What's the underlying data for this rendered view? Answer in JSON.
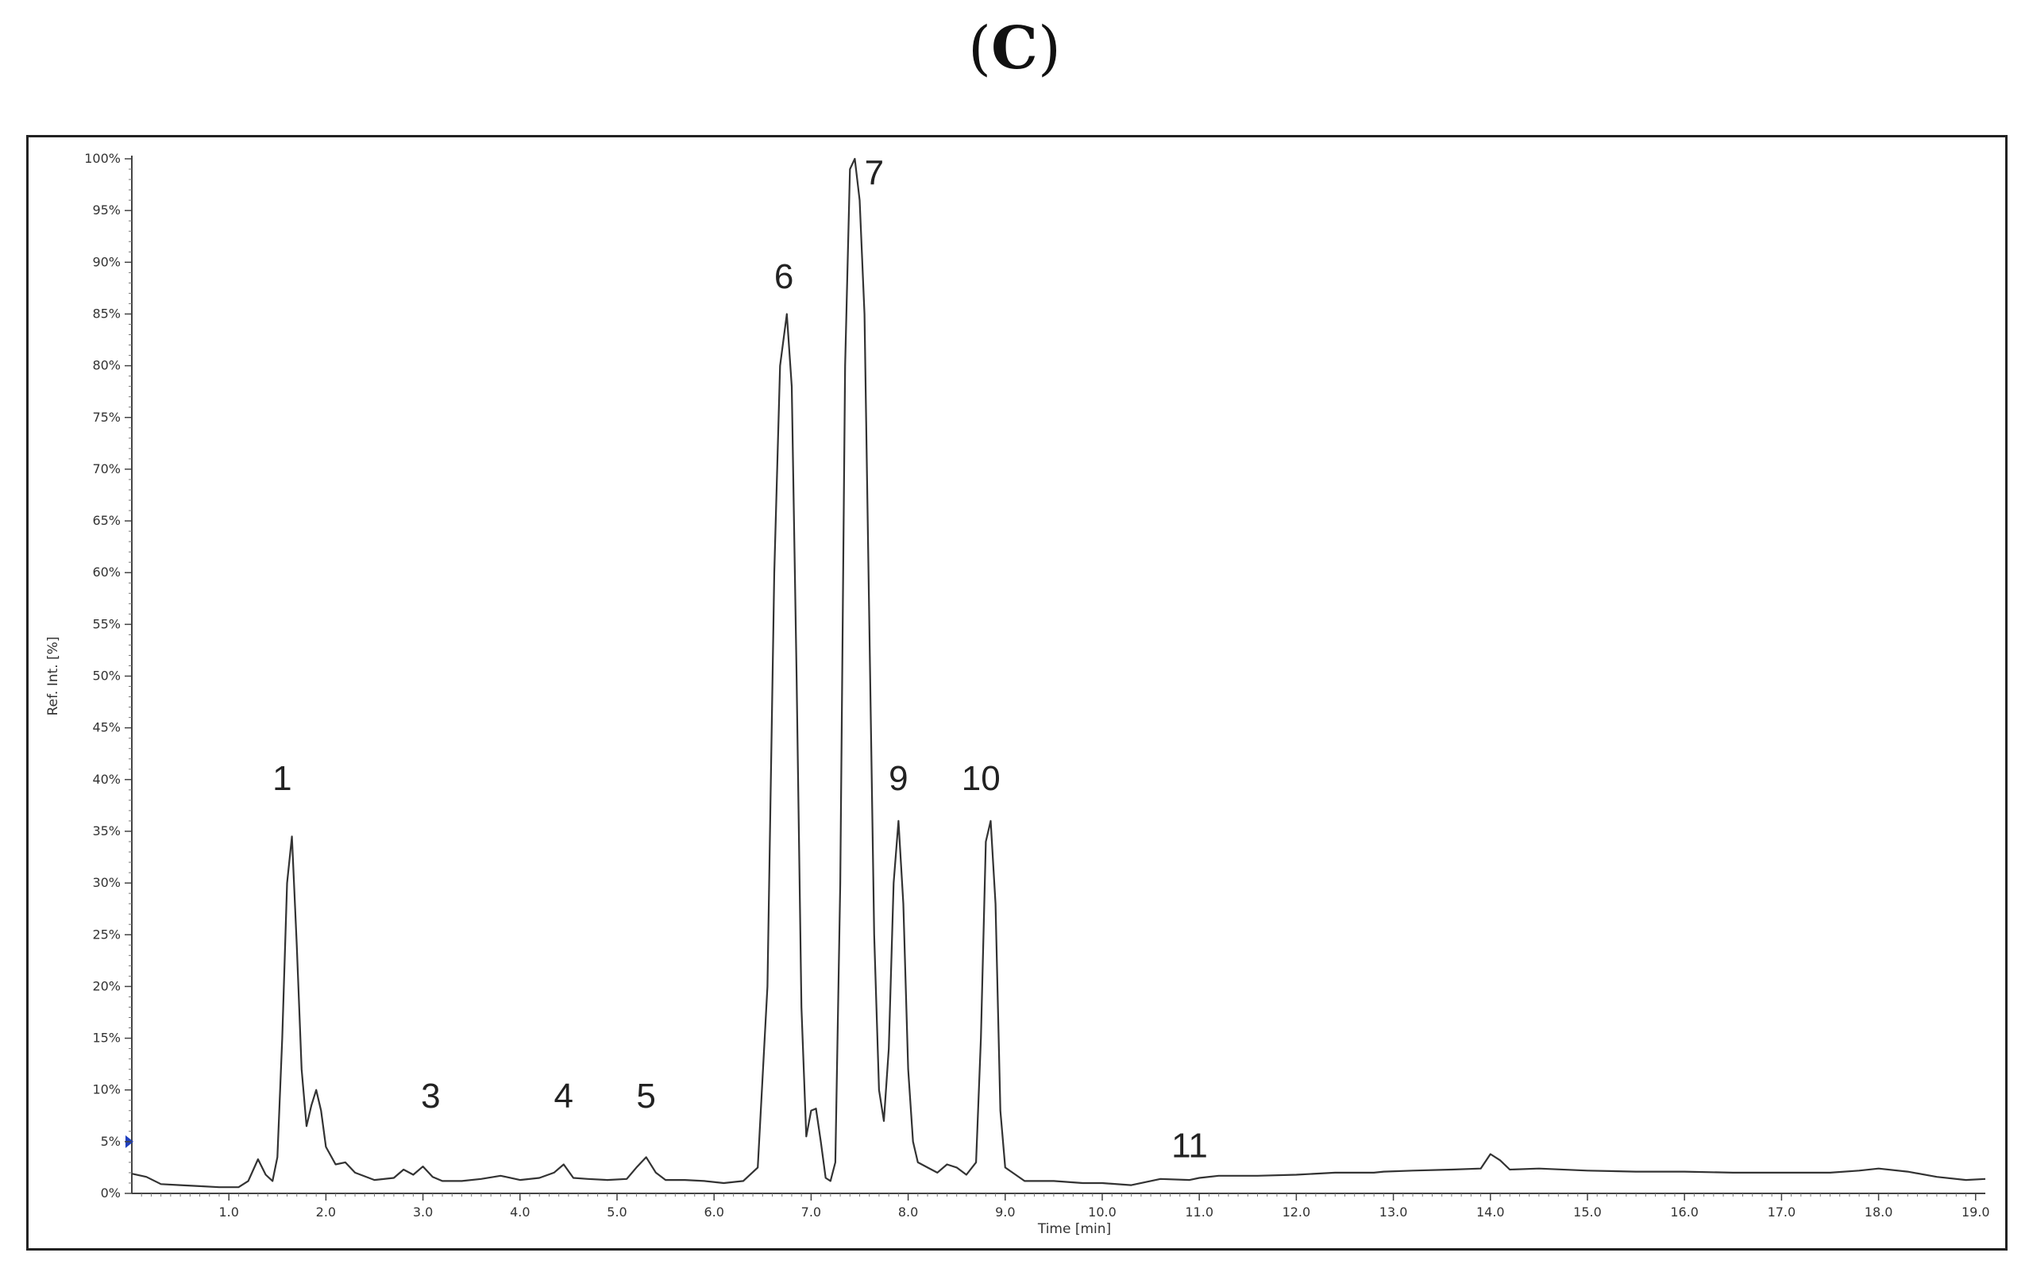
{
  "figure": {
    "panel_open": "(",
    "panel_letter": "C",
    "panel_close": ")"
  },
  "chart_data": {
    "type": "line",
    "title": "",
    "xlabel": "Time [min]",
    "ylabel": "Ref. Int. [%]",
    "xlim": [
      0,
      19.1
    ],
    "ylim": [
      0,
      100
    ],
    "x_ticks": [
      1.0,
      2.0,
      3.0,
      4.0,
      5.0,
      6.0,
      7.0,
      8.0,
      9.0,
      10.0,
      11.0,
      12.0,
      13.0,
      14.0,
      15.0,
      16.0,
      17.0,
      18.0,
      19.0
    ],
    "x_tick_labels": [
      "1.0",
      "2.0",
      "3.0",
      "4.0",
      "5.0",
      "6.0",
      "7.0",
      "8.0",
      "9.0",
      "10.0",
      "11.0",
      "12.0",
      "13.0",
      "14.0",
      "15.0",
      "16.0",
      "17.0",
      "18.0",
      "19.0"
    ],
    "y_ticks": [
      0,
      5,
      10,
      15,
      20,
      25,
      30,
      35,
      40,
      45,
      50,
      55,
      60,
      65,
      70,
      75,
      80,
      85,
      90,
      95,
      100
    ],
    "y_tick_labels": [
      "0%",
      "5%",
      "10%",
      "15%",
      "20%",
      "25%",
      "30%",
      "35%",
      "40%",
      "45%",
      "50%",
      "55%",
      "60%",
      "65%",
      "70%",
      "75%",
      "80%",
      "85%",
      "90%",
      "95%",
      "100%"
    ],
    "grid": false,
    "line_color": "#333333",
    "marker_color": "#1f3fbf",
    "series": [
      {
        "x": [
          0.0,
          0.15,
          0.3,
          0.5,
          0.7,
          0.9,
          1.1,
          1.2,
          1.3,
          1.38,
          1.45,
          1.5,
          1.55,
          1.6,
          1.65,
          1.7,
          1.75,
          1.8,
          1.85,
          1.9,
          1.95,
          2.0,
          2.1,
          2.2,
          2.3,
          2.5,
          2.7,
          2.8,
          2.9,
          3.0,
          3.1,
          3.2,
          3.4,
          3.6,
          3.8,
          4.0,
          4.2,
          4.35,
          4.45,
          4.55,
          4.7,
          4.9,
          5.1,
          5.2,
          5.3,
          5.4,
          5.5,
          5.7,
          5.9,
          6.1,
          6.3,
          6.45,
          6.55,
          6.62,
          6.68,
          6.75,
          6.8,
          6.85,
          6.9,
          6.95,
          7.0,
          7.05,
          7.1,
          7.15,
          7.2,
          7.25,
          7.3,
          7.35,
          7.4,
          7.45,
          7.5,
          7.55,
          7.6,
          7.65,
          7.7,
          7.75,
          7.8,
          7.85,
          7.9,
          7.95,
          8.0,
          8.05,
          8.1,
          8.2,
          8.3,
          8.4,
          8.5,
          8.6,
          8.7,
          8.75,
          8.8,
          8.85,
          8.9,
          8.95,
          9.0,
          9.2,
          9.5,
          9.8,
          10.0,
          10.3,
          10.6,
          10.9,
          11.0,
          11.2,
          11.6,
          12.0,
          12.4,
          12.8,
          12.9,
          13.2,
          13.6,
          13.9,
          14.0,
          14.1,
          14.2,
          14.5,
          15.0,
          15.5,
          16.0,
          16.5,
          17.0,
          17.5,
          17.8,
          18.0,
          18.3,
          18.6,
          18.9,
          19.1
        ],
        "y": [
          1.9,
          1.6,
          0.9,
          0.8,
          0.7,
          0.6,
          0.6,
          1.2,
          3.3,
          1.8,
          1.2,
          3.5,
          15.0,
          30.0,
          34.5,
          24.0,
          12.0,
          6.5,
          8.5,
          10.0,
          8.0,
          4.5,
          2.8,
          3.0,
          2.0,
          1.3,
          1.5,
          2.3,
          1.8,
          2.6,
          1.6,
          1.2,
          1.2,
          1.4,
          1.7,
          1.3,
          1.5,
          2.0,
          2.8,
          1.5,
          1.4,
          1.3,
          1.4,
          2.5,
          3.5,
          2.0,
          1.3,
          1.3,
          1.2,
          1.0,
          1.2,
          2.5,
          20.0,
          60.0,
          80.0,
          85.0,
          78.0,
          50.0,
          18.0,
          5.5,
          8.0,
          8.2,
          5.0,
          1.5,
          1.2,
          3.0,
          30.0,
          80.0,
          99.0,
          100.0,
          96.0,
          85.0,
          55.0,
          25.0,
          10.0,
          7.0,
          14.0,
          30.0,
          36.0,
          28.0,
          12.0,
          5.0,
          3.0,
          2.5,
          2.0,
          2.8,
          2.5,
          1.8,
          3.0,
          15.0,
          34.0,
          36.0,
          28.0,
          8.0,
          2.5,
          1.2,
          1.2,
          1.0,
          1.0,
          0.8,
          1.4,
          1.3,
          1.5,
          1.7,
          1.7,
          1.8,
          2.0,
          2.0,
          2.1,
          2.2,
          2.3,
          2.4,
          3.8,
          3.2,
          2.3,
          2.4,
          2.2,
          2.1,
          2.1,
          2.0,
          2.0,
          2.0,
          2.2,
          2.4,
          2.1,
          1.6,
          1.3,
          1.4
        ]
      }
    ],
    "annotations": [
      {
        "label": "1",
        "x": 1.55,
        "y": 39
      },
      {
        "label": "3",
        "x": 3.08,
        "y": 8.3
      },
      {
        "label": "4",
        "x": 4.45,
        "y": 8.3
      },
      {
        "label": "5",
        "x": 5.3,
        "y": 8.3
      },
      {
        "label": "6",
        "x": 6.72,
        "y": 87.5
      },
      {
        "label": "7",
        "x": 7.65,
        "y": 97.5
      },
      {
        "label": "9",
        "x": 7.9,
        "y": 39
      },
      {
        "label": "10",
        "x": 8.75,
        "y": 39
      },
      {
        "label": "11",
        "x": 10.9,
        "y": 3.5
      }
    ],
    "y_marker": {
      "y": 5,
      "shape": "triangle-right"
    }
  }
}
